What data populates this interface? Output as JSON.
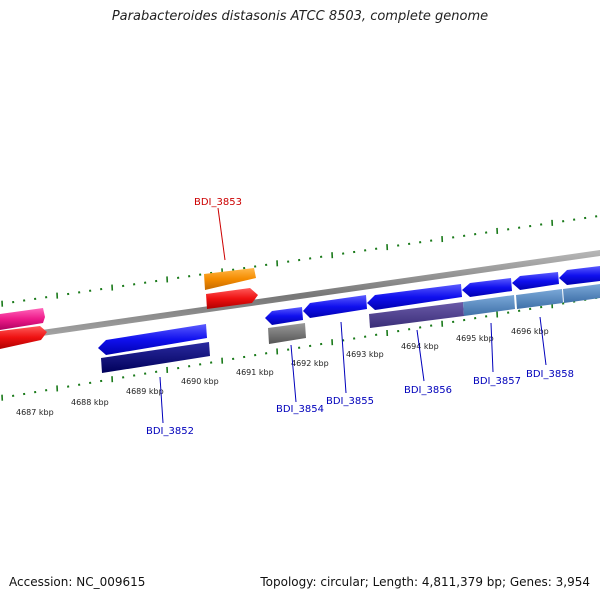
{
  "title": "Parabacteroides distasonis ATCC 8503, complete genome",
  "footer": {
    "accession": "Accession: NC_009615",
    "summary": "Topology: circular; Length: 4,811,379 bp; Genes: 3,954"
  },
  "colors": {
    "tick": "#1a7a1a",
    "backbone": "#8a8a8a",
    "label_upper": "#cc0000",
    "label_lower": "#0000bb"
  },
  "ticks": [
    {
      "label": "4687 kbp"
    },
    {
      "label": "4688 kbp"
    },
    {
      "label": "4689 kbp"
    },
    {
      "label": "4690 kbp"
    },
    {
      "label": "4691 kbp"
    },
    {
      "label": "4692 kbp"
    },
    {
      "label": "4693 kbp"
    },
    {
      "label": "4694 kbp"
    },
    {
      "label": "4695 kbp"
    },
    {
      "label": "4696 kbp"
    }
  ],
  "gene_labels": [
    {
      "text": "BDI_3853"
    },
    {
      "text": "BDI_3852"
    },
    {
      "text": "BDI_3854"
    },
    {
      "text": "BDI_3855"
    },
    {
      "text": "BDI_3856"
    },
    {
      "text": "BDI_3857"
    },
    {
      "text": "BDI_3858"
    }
  ]
}
